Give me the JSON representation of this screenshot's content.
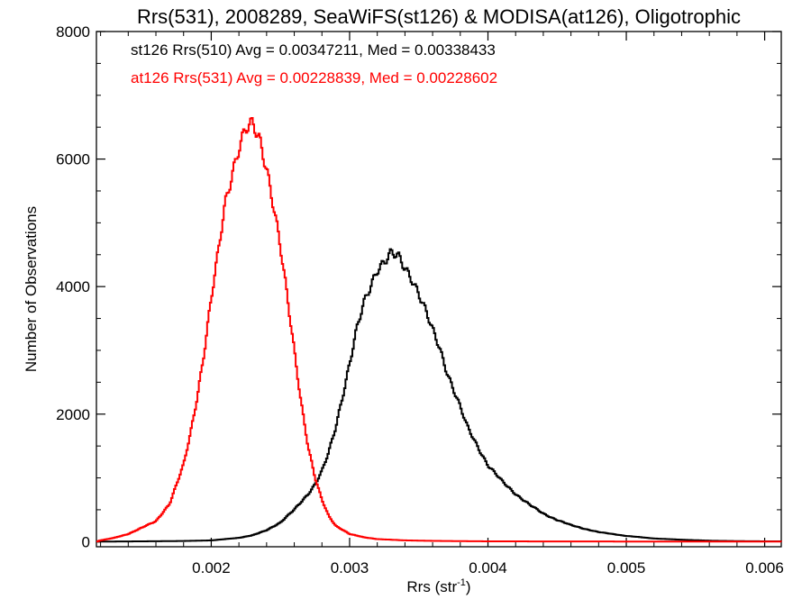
{
  "chart_data": {
    "type": "line",
    "style": "histogram-step",
    "title": "Rrs(531), 2008289, SeaWiFS(st126) & MODISA(at126), Oligotrophic",
    "xlabel_main": "Rrs (str",
    "xlabel_sup": "-1",
    "xlabel_close": ")",
    "ylabel": "Number of Observations",
    "xlim": [
      0.00117,
      0.00612
    ],
    "ylim": [
      -80,
      8000
    ],
    "x_ticks": [
      0.002,
      0.003,
      0.004,
      0.005,
      0.006
    ],
    "x_tick_labels": [
      "0.002",
      "0.003",
      "0.004",
      "0.005",
      "0.006"
    ],
    "y_ticks": [
      0,
      2000,
      4000,
      6000,
      8000
    ],
    "y_tick_labels": [
      "0",
      "2000",
      "4000",
      "6000",
      "8000"
    ],
    "grid": false,
    "legend_position": "top-left",
    "series": [
      {
        "label": "st126 Rrs(510) Avg = 0.00347211, Med = 0.00338433",
        "color": "#000000",
        "peak_x": 0.0033,
        "peak_y": 4500,
        "points": [
          [
            0.00117,
            0
          ],
          [
            0.0015,
            5
          ],
          [
            0.0018,
            10
          ],
          [
            0.002,
            20
          ],
          [
            0.0022,
            60
          ],
          [
            0.0023,
            100
          ],
          [
            0.0024,
            180
          ],
          [
            0.0025,
            300
          ],
          [
            0.0026,
            500
          ],
          [
            0.0027,
            750
          ],
          [
            0.00275,
            900
          ],
          [
            0.0028,
            1100
          ],
          [
            0.00285,
            1400
          ],
          [
            0.0029,
            1800
          ],
          [
            0.00295,
            2300
          ],
          [
            0.003,
            2800
          ],
          [
            0.00305,
            3300
          ],
          [
            0.0031,
            3700
          ],
          [
            0.00315,
            4000
          ],
          [
            0.0032,
            4300
          ],
          [
            0.00325,
            4400
          ],
          [
            0.0033,
            4500
          ],
          [
            0.00335,
            4450
          ],
          [
            0.0034,
            4300
          ],
          [
            0.00345,
            4150
          ],
          [
            0.0035,
            3900
          ],
          [
            0.00355,
            3600
          ],
          [
            0.0036,
            3300
          ],
          [
            0.00365,
            3050
          ],
          [
            0.0037,
            2700
          ],
          [
            0.00375,
            2400
          ],
          [
            0.0038,
            2100
          ],
          [
            0.00385,
            1800
          ],
          [
            0.0039,
            1600
          ],
          [
            0.00395,
            1400
          ],
          [
            0.004,
            1200
          ],
          [
            0.0041,
            950
          ],
          [
            0.0042,
            750
          ],
          [
            0.0043,
            580
          ],
          [
            0.0044,
            440
          ],
          [
            0.0045,
            340
          ],
          [
            0.0046,
            260
          ],
          [
            0.0047,
            200
          ],
          [
            0.0048,
            150
          ],
          [
            0.0049,
            120
          ],
          [
            0.005,
            90
          ],
          [
            0.0052,
            50
          ],
          [
            0.0054,
            30
          ],
          [
            0.0056,
            15
          ],
          [
            0.0058,
            8
          ],
          [
            0.006,
            5
          ],
          [
            0.00612,
            4
          ]
        ]
      },
      {
        "label": "at126 Rrs(531) Avg = 0.00228839, Med = 0.00228602",
        "color": "#ff0000",
        "peak_x": 0.0023,
        "peak_y": 6500,
        "points": [
          [
            0.00117,
            0
          ],
          [
            0.0012,
            20
          ],
          [
            0.0013,
            60
          ],
          [
            0.0014,
            120
          ],
          [
            0.0015,
            220
          ],
          [
            0.0016,
            320
          ],
          [
            0.0017,
            600
          ],
          [
            0.0018,
            1200
          ],
          [
            0.00185,
            1700
          ],
          [
            0.0019,
            2300
          ],
          [
            0.00195,
            3000
          ],
          [
            0.002,
            3800
          ],
          [
            0.00205,
            4500
          ],
          [
            0.0021,
            5300
          ],
          [
            0.00215,
            5800
          ],
          [
            0.0022,
            6200
          ],
          [
            0.00225,
            6450
          ],
          [
            0.0023,
            6500
          ],
          [
            0.00235,
            6300
          ],
          [
            0.0024,
            5900
          ],
          [
            0.00245,
            5300
          ],
          [
            0.0025,
            4600
          ],
          [
            0.00255,
            3800
          ],
          [
            0.0026,
            3000
          ],
          [
            0.00265,
            2200
          ],
          [
            0.0027,
            1500
          ],
          [
            0.00275,
            1000
          ],
          [
            0.0028,
            650
          ],
          [
            0.00285,
            400
          ],
          [
            0.0029,
            250
          ],
          [
            0.003,
            120
          ],
          [
            0.0031,
            70
          ],
          [
            0.0032,
            40
          ],
          [
            0.0034,
            20
          ],
          [
            0.0036,
            12
          ],
          [
            0.0038,
            8
          ],
          [
            0.004,
            5
          ],
          [
            0.0045,
            3
          ],
          [
            0.005,
            2
          ],
          [
            0.00612,
            1
          ]
        ]
      }
    ]
  }
}
